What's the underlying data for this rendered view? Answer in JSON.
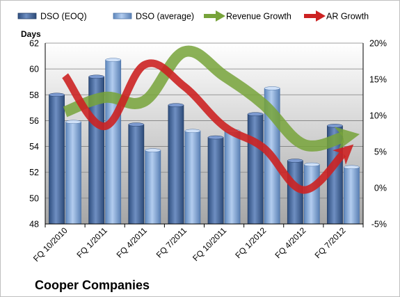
{
  "chart_data": {
    "type": "bar",
    "title": "Cooper Companies",
    "ylabel": "Days",
    "categories": [
      "FQ 10/2010",
      "FQ 1/2011",
      "FQ 4/2011",
      "FQ 7/2011",
      "FQ 10/2011",
      "FQ 1/2012",
      "FQ 4/2012",
      "FQ 7/2012"
    ],
    "ylim": [
      48,
      62
    ],
    "yticks": [
      "48",
      "50",
      "52",
      "54",
      "56",
      "58",
      "60",
      "62"
    ],
    "y2lim": [
      -5,
      20
    ],
    "y2ticks": [
      "-5%",
      "0%",
      "5%",
      "10%",
      "15%",
      "20%"
    ],
    "grid": true,
    "legend_position": "top",
    "series": [
      {
        "name": "DSO (EOQ)",
        "axis": "left",
        "kind": "bar",
        "color": "#4a6fa5",
        "values": [
          58.0,
          59.4,
          55.7,
          57.2,
          54.7,
          56.5,
          52.9,
          55.6
        ]
      },
      {
        "name": "DSO (average)",
        "axis": "left",
        "kind": "bar",
        "color": "#8fb4e3",
        "values": [
          55.9,
          60.7,
          53.7,
          55.2,
          55.2,
          58.5,
          52.6,
          52.4
        ]
      },
      {
        "name": "Revenue Growth",
        "axis": "right",
        "kind": "line",
        "color": "#77a33a",
        "unit": "%",
        "values": [
          10.5,
          12.5,
          12.0,
          18.8,
          15.5,
          11.5,
          6.0,
          7.0
        ]
      },
      {
        "name": "AR Growth",
        "axis": "right",
        "kind": "line",
        "color": "#cc2222",
        "unit": "%",
        "values": [
          15.5,
          8.5,
          17.0,
          14.0,
          8.5,
          5.5,
          -0.3,
          4.7
        ]
      }
    ]
  }
}
